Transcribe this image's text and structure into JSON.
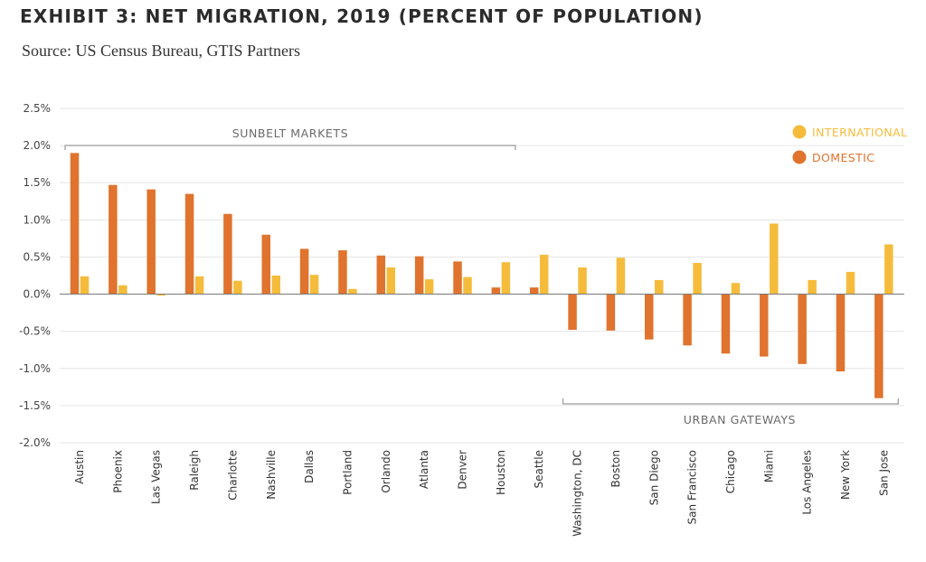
{
  "title": "EXHIBIT 3: NET MIGRATION, 2019 (PERCENT OF POPULATION)",
  "subtitle": "Source: US Census Bureau, GTIS Partners",
  "colors": {
    "domestic": "#E0732E",
    "international": "#F5BC3C",
    "grid": "#e6e6e6",
    "bracket": "#9a9a9a"
  },
  "chart_data": {
    "type": "bar",
    "ylim": [
      -2.0,
      2.5
    ],
    "yticks": [
      2.5,
      2.0,
      1.5,
      1.0,
      0.5,
      0.0,
      -0.5,
      -1.0,
      -1.5,
      -2.0
    ],
    "ytick_labels": [
      "2.5%",
      "2.0%",
      "1.5%",
      "1.0%",
      "0.5%",
      "0.0%",
      "-0.5%",
      "-1.0%",
      "-1.5%",
      "-2.0%"
    ],
    "grid": true,
    "legend_placement": "top-right",
    "categories": [
      "Austin",
      "Phoenix",
      "Las Vegas",
      "Raleigh",
      "Charlotte",
      "Nashville",
      "Dallas",
      "Portland",
      "Orlando",
      "Atlanta",
      "Denver",
      "Houston",
      "Seattle",
      "Washington, DC",
      "Boston",
      "San Diego",
      "San Francisco",
      "Chicago",
      "Miami",
      "Los Angeles",
      "New York",
      "San Jose"
    ],
    "series": [
      {
        "name": "DOMESTIC",
        "color_key": "domestic",
        "values": [
          1.9,
          1.47,
          1.41,
          1.35,
          1.08,
          0.8,
          0.61,
          0.59,
          0.52,
          0.51,
          0.44,
          0.09,
          0.09,
          -0.48,
          -0.49,
          -0.61,
          -0.69,
          -0.8,
          -0.84,
          -0.94,
          -1.04,
          -1.4
        ]
      },
      {
        "name": "INTERNATIONAL",
        "color_key": "international",
        "values": [
          0.24,
          0.12,
          -0.02,
          0.24,
          0.18,
          0.25,
          0.26,
          0.07,
          0.36,
          0.2,
          0.23,
          0.43,
          0.53,
          0.36,
          0.49,
          0.19,
          0.42,
          0.15,
          0.95,
          0.19,
          0.3,
          0.67
        ]
      }
    ],
    "annotations": [
      {
        "label": "SUNBELT MARKETS",
        "from_index": 0,
        "to_index": 11,
        "side": "top"
      },
      {
        "label": "URBAN GATEWAYS",
        "from_index": 13,
        "to_index": 21,
        "side": "bottom"
      }
    ]
  }
}
